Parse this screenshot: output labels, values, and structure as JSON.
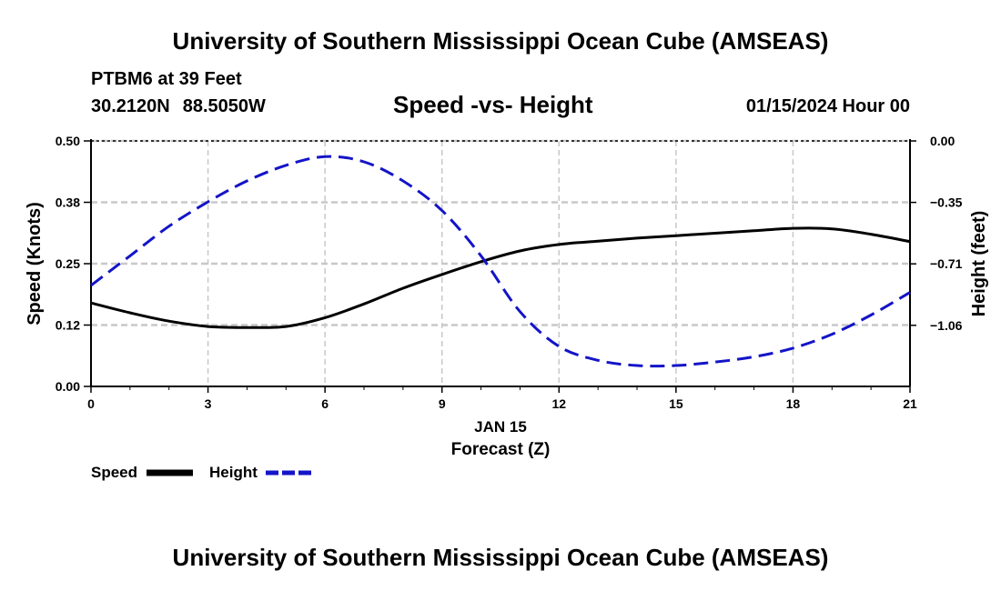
{
  "header": {
    "title": "University of Southern Mississippi Ocean Cube (AMSEAS)",
    "station": "PTBM6 at 39 Feet",
    "latitude": "30.2120N",
    "longitude": "88.5050W",
    "chart_title": "Speed -vs- Height",
    "datetime": "01/15/2024 Hour 00"
  },
  "footer": {
    "title": "University of Southern Mississippi Ocean Cube (AMSEAS)"
  },
  "colors": {
    "speed": "#000000",
    "height": "#1414c8",
    "grid": "#c8c8c8"
  },
  "chart_data": {
    "type": "line",
    "title": "Speed -vs- Height",
    "xlabel": "Forecast (Z)",
    "xlabel_date": "JAN 15",
    "ylabel": "Speed (Knots)",
    "y2label": "Height (feet)",
    "xlim": [
      0,
      21
    ],
    "ylim": [
      0,
      0.5
    ],
    "y2lim": [
      -1.41,
      0
    ],
    "x_ticks": [
      0,
      3,
      6,
      9,
      12,
      15,
      18,
      21
    ],
    "y_ticks": [
      "0.00",
      "0.12",
      "0.25",
      "0.38",
      "0.50"
    ],
    "y_tick_values": [
      0,
      0.125,
      0.25,
      0.375,
      0.5
    ],
    "y2_ticks": [
      "0.00",
      "−0.35",
      "−0.71",
      "−1.06"
    ],
    "y2_tick_values": [
      0,
      -0.353,
      -0.706,
      -1.059
    ],
    "grid": true,
    "legend": [
      "Speed",
      "Height"
    ],
    "legend_position": "bottom-left",
    "series": [
      {
        "name": "Speed",
        "axis": "left",
        "style": "solid",
        "x": [
          0,
          1,
          2,
          3,
          4,
          5,
          6,
          7,
          8,
          9,
          10,
          11,
          12,
          13,
          14,
          15,
          16,
          17,
          18,
          19,
          20,
          21
        ],
        "values": [
          0.17,
          0.15,
          0.133,
          0.122,
          0.12,
          0.122,
          0.14,
          0.168,
          0.2,
          0.228,
          0.254,
          0.276,
          0.289,
          0.296,
          0.302,
          0.307,
          0.312,
          0.317,
          0.322,
          0.321,
          0.31,
          0.295
        ]
      },
      {
        "name": "Height",
        "axis": "right",
        "style": "dashed",
        "x": [
          0,
          1,
          2,
          3,
          4,
          5,
          6,
          7,
          8,
          9,
          10,
          11,
          12,
          13,
          14,
          15,
          16,
          17,
          18,
          19,
          20,
          21
        ],
        "values": [
          -0.83,
          -0.66,
          -0.49,
          -0.35,
          -0.23,
          -0.14,
          -0.09,
          -0.12,
          -0.23,
          -0.4,
          -0.66,
          -0.98,
          -1.18,
          -1.26,
          -1.29,
          -1.29,
          -1.27,
          -1.24,
          -1.19,
          -1.11,
          -1.0,
          -0.87
        ]
      }
    ]
  }
}
